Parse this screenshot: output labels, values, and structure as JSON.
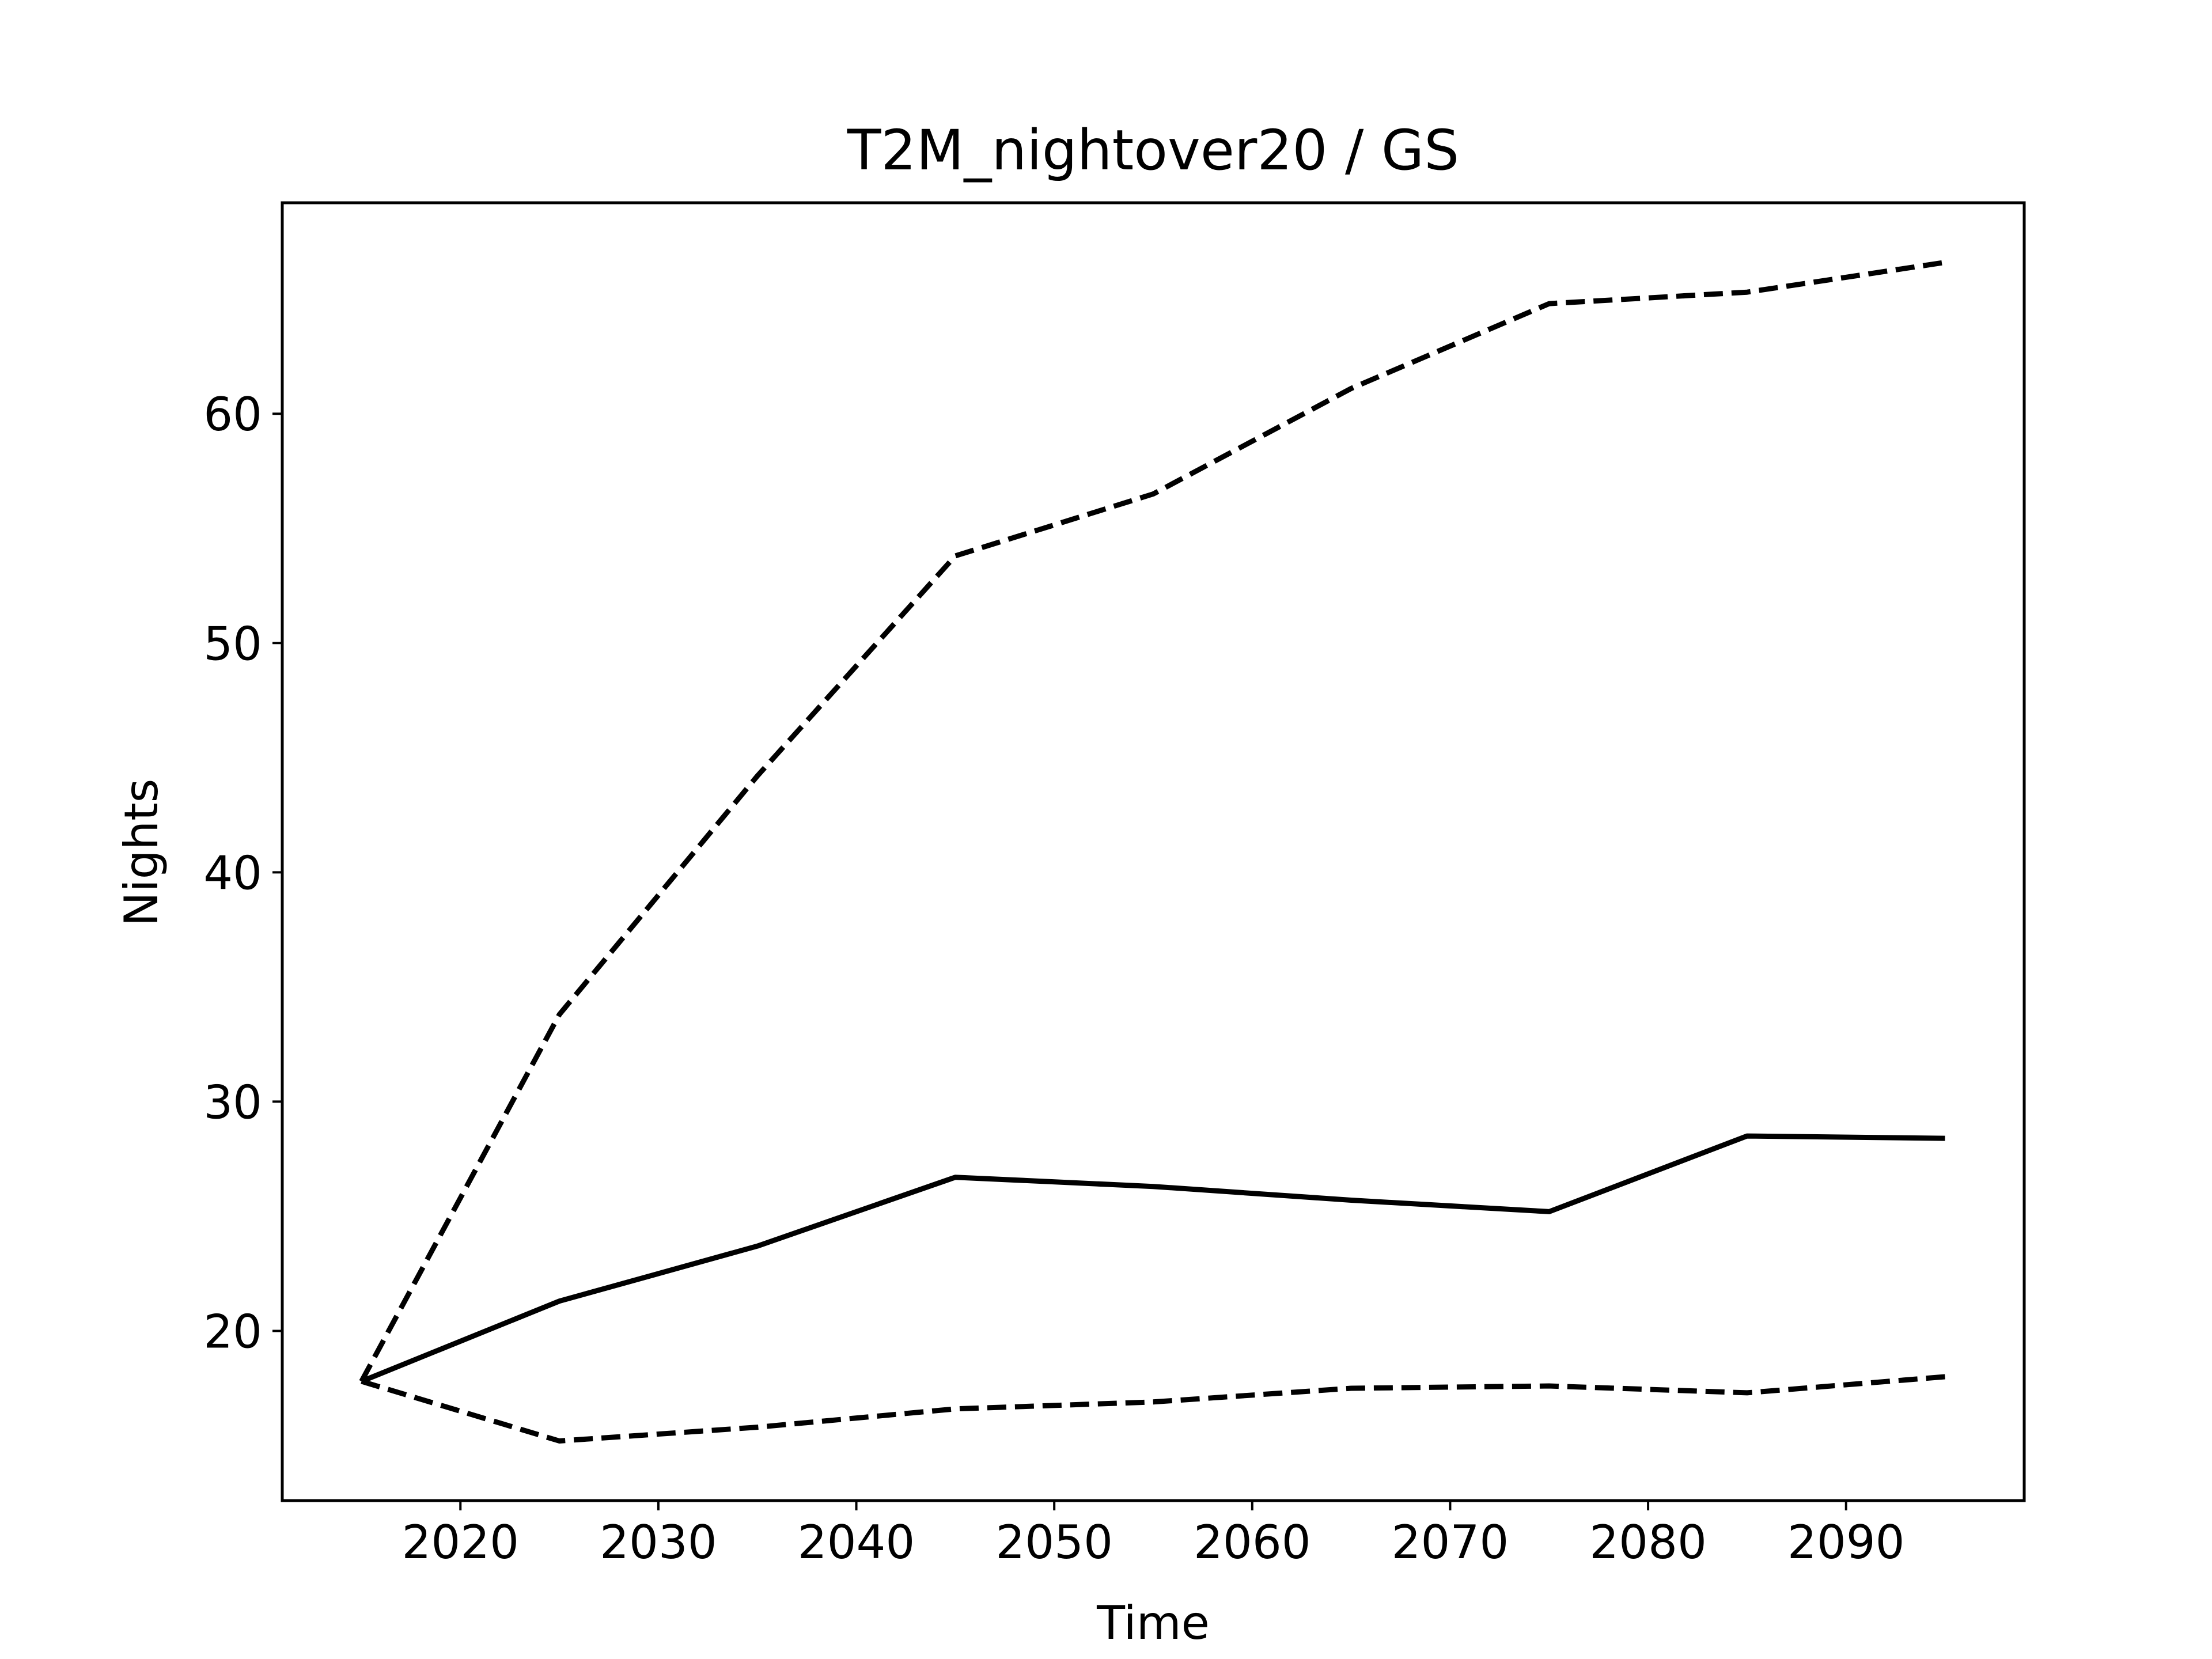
{
  "chart_data": {
    "type": "line",
    "title": "T2M_nightover20 / GS",
    "xlabel": "Time",
    "ylabel": "Nights",
    "xlim": [
      2011,
      2099
    ],
    "ylim": [
      12.6,
      69.2
    ],
    "x_ticks": [
      2020,
      2030,
      2040,
      2050,
      2060,
      2070,
      2080,
      2090
    ],
    "y_ticks": [
      20,
      30,
      40,
      50,
      60
    ],
    "grid": false,
    "legend": "none",
    "x": [
      2015,
      2025,
      2035,
      2045,
      2055,
      2065,
      2075,
      2085,
      2095
    ],
    "series": [
      {
        "style": "solid",
        "color": "#000000",
        "values": [
          17.8,
          21.3,
          23.7,
          26.7,
          26.3,
          25.7,
          25.2,
          28.5,
          28.4
        ]
      },
      {
        "style": "dashed",
        "color": "#000000",
        "values": [
          17.8,
          33.8,
          44.2,
          53.8,
          56.5,
          61.1,
          64.8,
          65.3,
          66.6
        ]
      },
      {
        "style": "dashed",
        "color": "#000000",
        "values": [
          17.8,
          15.2,
          15.8,
          16.6,
          16.9,
          17.5,
          17.6,
          17.3,
          18.0
        ]
      }
    ]
  }
}
